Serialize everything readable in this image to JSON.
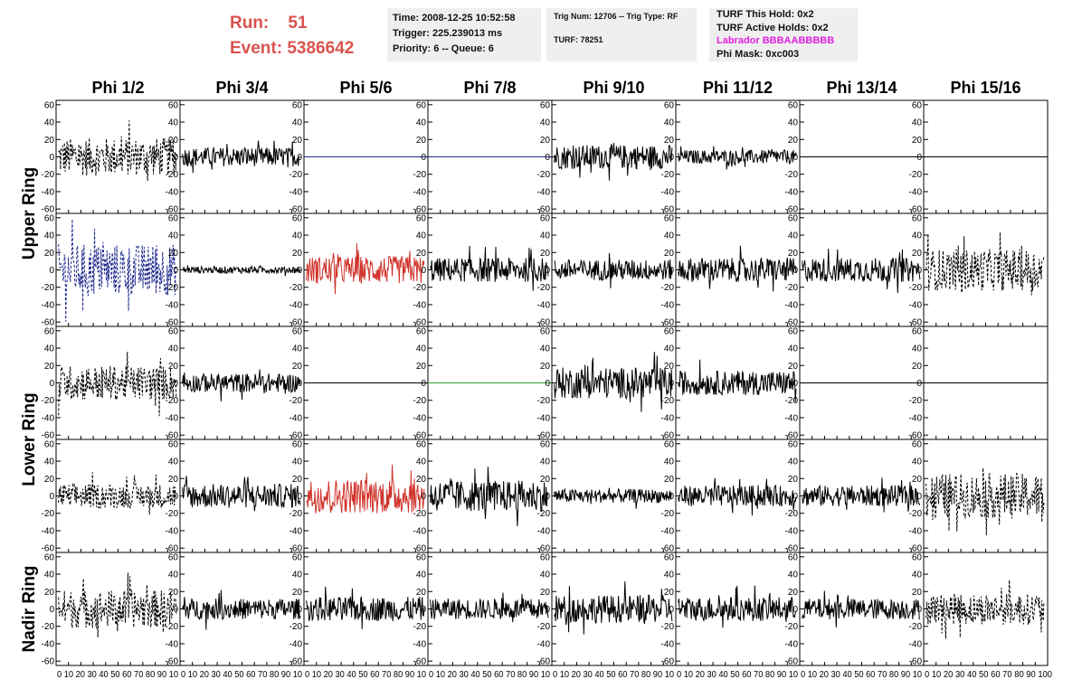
{
  "header": {
    "run_label": "Run:",
    "run_value": "51",
    "event_label": "Event:",
    "event_value": "5386642"
  },
  "info_box_1": {
    "time": "Time: 2008-12-25 10:52:58",
    "trigger": "Trigger: 225.239013 ms",
    "priority": "Priority: 6 -- Queue: 6"
  },
  "info_box_2": {
    "trig": "Trig Num: 12706 -- Trig Type: RF",
    "turf": "TURF: 78251"
  },
  "info_box_3": {
    "this_hold": "TURF This Hold: 0x2",
    "active_holds": "TURF Active Holds: 0x2",
    "labrador": "Labrador BBBAABBBBB",
    "phi_mask": "Phi Mask: 0xc003"
  },
  "colors": {
    "run_text": "#d9534f",
    "labrador_text": "#e020e0",
    "info_background": "#efefef",
    "trace_black": "#000000",
    "trace_blue": "#1f2a8c",
    "trace_red": "#d0342c",
    "trace_green": "#2ca02c"
  },
  "chart_data": {
    "type": "line",
    "columns": [
      "Phi 1/2",
      "Phi 3/4",
      "Phi 5/6",
      "Phi 7/8",
      "Phi 9/10",
      "Phi 11/12",
      "Phi 13/14",
      "Phi 15/16"
    ],
    "rows": [
      {
        "label": "Upper Ring"
      },
      {
        "label": ""
      },
      {
        "label": "Lower Ring"
      },
      {
        "label": ""
      },
      {
        "label": "Nadir Ring"
      }
    ],
    "row_group_labels": [
      "Upper Ring",
      "Lower Ring",
      "Nadir Ring"
    ],
    "xlim": [
      0,
      100
    ],
    "x_ticks": [
      0,
      10,
      20,
      30,
      40,
      50,
      60,
      70,
      80,
      90,
      100
    ],
    "x_tick_text": "0 10 20 30 40 50 60 70 80 90 10",
    "x_tick_text_last": "0 10 20 30 40 50 60 70 80 90 100",
    "ylim": [
      -65,
      65
    ],
    "y_ticks": [
      60,
      40,
      20,
      0,
      -20,
      -40,
      -60
    ],
    "y_tick_labels": [
      "60",
      "40",
      "20",
      "0",
      "-20",
      "-40",
      "-60"
    ],
    "panels": [
      [
        {
          "style": "dashed",
          "color": "black",
          "amp": 22,
          "flat": false
        },
        {
          "style": "solid",
          "color": "black",
          "amp": 11,
          "flat": false
        },
        {
          "style": "solid",
          "color": "blue",
          "amp": 0,
          "flat": true
        },
        {
          "style": "solid",
          "color": "blue",
          "amp": 0,
          "flat": true
        },
        {
          "style": "solid",
          "color": "black",
          "amp": 14,
          "flat": false
        },
        {
          "style": "solid",
          "color": "black",
          "amp": 8,
          "flat": false
        },
        {
          "style": "solid",
          "color": "black",
          "amp": 0,
          "flat": true
        },
        {
          "style": "solid",
          "color": "black",
          "amp": 0,
          "flat": true
        }
      ],
      [
        {
          "style": "dashed",
          "color": "blue",
          "amp": 30,
          "flat": false
        },
        {
          "style": "solid",
          "color": "black",
          "amp": 4,
          "flat": false
        },
        {
          "style": "solid",
          "color": "red",
          "amp": 16,
          "flat": false
        },
        {
          "style": "solid",
          "color": "black",
          "amp": 14,
          "flat": false
        },
        {
          "style": "solid",
          "color": "black",
          "amp": 12,
          "flat": false
        },
        {
          "style": "solid",
          "color": "black",
          "amp": 14,
          "flat": false
        },
        {
          "style": "solid",
          "color": "black",
          "amp": 14,
          "flat": false
        },
        {
          "style": "dashed",
          "color": "black",
          "amp": 24,
          "flat": false
        }
      ],
      [
        {
          "style": "dashed",
          "color": "black",
          "amp": 20,
          "flat": false
        },
        {
          "style": "solid",
          "color": "black",
          "amp": 11,
          "flat": false
        },
        {
          "style": "solid",
          "color": "black",
          "amp": 0,
          "flat": true
        },
        {
          "style": "solid",
          "color": "green",
          "amp": 0,
          "flat": true
        },
        {
          "style": "solid",
          "color": "black",
          "amp": 18,
          "flat": false
        },
        {
          "style": "solid",
          "color": "black",
          "amp": 14,
          "flat": false
        },
        {
          "style": "solid",
          "color": "black",
          "amp": 0,
          "flat": true
        },
        {
          "style": "solid",
          "color": "black",
          "amp": 0,
          "flat": true
        }
      ],
      [
        {
          "style": "dashed",
          "color": "black",
          "amp": 14,
          "flat": false
        },
        {
          "style": "solid",
          "color": "black",
          "amp": 14,
          "flat": false
        },
        {
          "style": "solid",
          "color": "red",
          "amp": 20,
          "flat": false
        },
        {
          "style": "solid",
          "color": "black",
          "amp": 18,
          "flat": false
        },
        {
          "style": "solid",
          "color": "black",
          "amp": 8,
          "flat": false
        },
        {
          "style": "solid",
          "color": "black",
          "amp": 12,
          "flat": false
        },
        {
          "style": "solid",
          "color": "black",
          "amp": 12,
          "flat": false
        },
        {
          "style": "dashed",
          "color": "black",
          "amp": 26,
          "flat": false
        }
      ],
      [
        {
          "style": "dashed",
          "color": "black",
          "amp": 22,
          "flat": false
        },
        {
          "style": "solid",
          "color": "black",
          "amp": 12,
          "flat": false
        },
        {
          "style": "solid",
          "color": "black",
          "amp": 14,
          "flat": false
        },
        {
          "style": "solid",
          "color": "black",
          "amp": 12,
          "flat": false
        },
        {
          "style": "solid",
          "color": "black",
          "amp": 16,
          "flat": false
        },
        {
          "style": "solid",
          "color": "black",
          "amp": 14,
          "flat": false
        },
        {
          "style": "solid",
          "color": "black",
          "amp": 12,
          "flat": false
        },
        {
          "style": "dashed",
          "color": "black",
          "amp": 18,
          "flat": false
        }
      ]
    ]
  }
}
